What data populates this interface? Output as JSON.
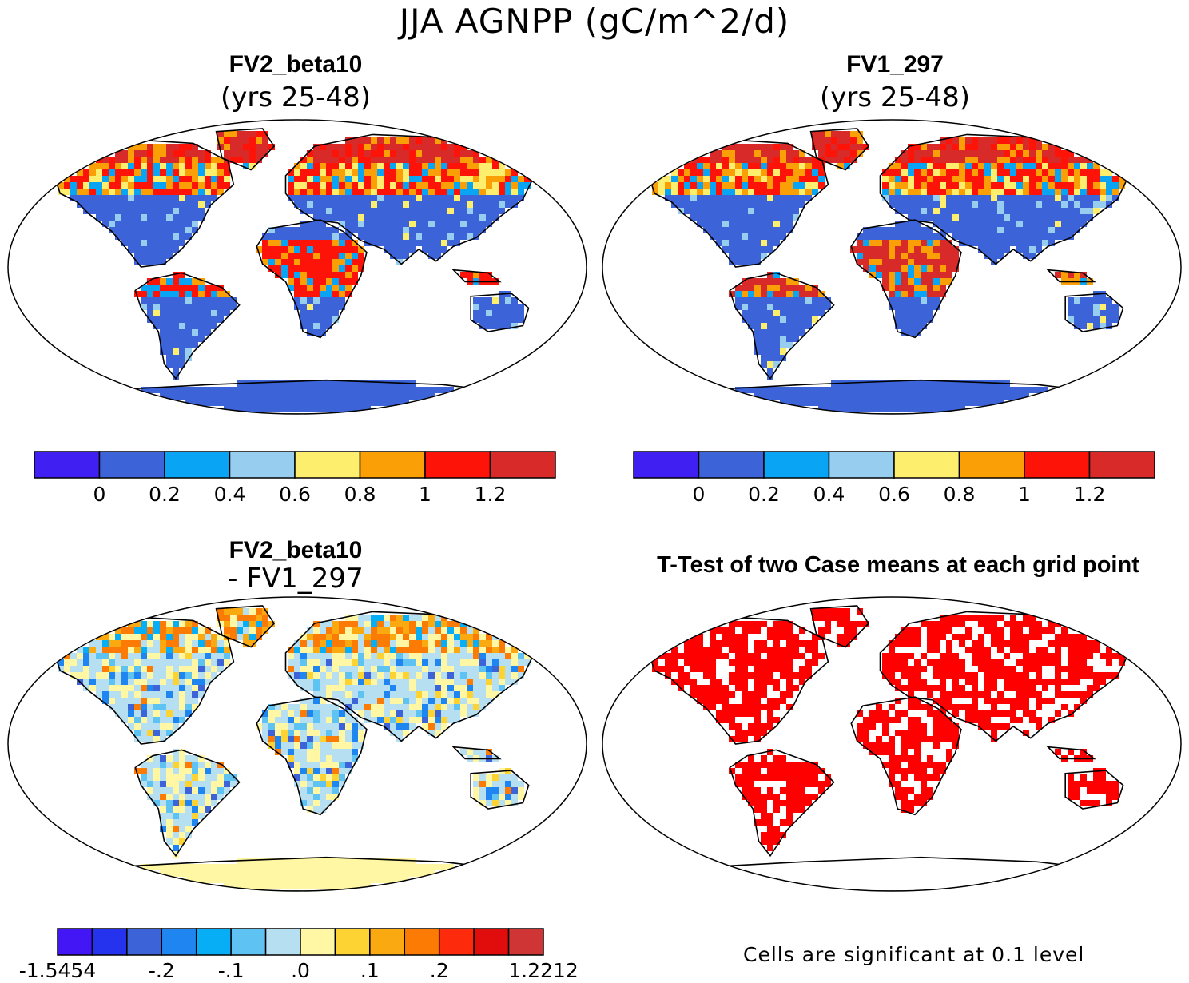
{
  "title": "JJA AGNPP (gC/m^2/d)",
  "panels": [
    {
      "title": "FV2_beta10",
      "subtitle": "(yrs 25-48)",
      "color_scheme": "mean"
    },
    {
      "title": "FV1_297",
      "subtitle": "(yrs 25-48)",
      "color_scheme": "mean"
    },
    {
      "title": "FV2_beta10",
      "subtitle": "- FV1_297",
      "color_scheme": "difference"
    },
    {
      "title": "T-Test of two Case means at each grid point",
      "subtitle": "",
      "color_scheme": "significance"
    }
  ],
  "colorbar_mean": {
    "colors": [
      "#3f1ff2",
      "#3c64d8",
      "#0aa4f5",
      "#97cdef",
      "#fdee6e",
      "#fb9f06",
      "#fe1308",
      "#d92a2a"
    ],
    "tick_labels": [
      "0",
      "0.2",
      "0.4",
      "0.6",
      "0.8",
      "1",
      "1.2"
    ]
  },
  "colorbar_diff": {
    "colors": [
      "#4316f6",
      "#2533ef",
      "#3c64d8",
      "#1f86f1",
      "#07aef6",
      "#5ec2f3",
      "#b6dff2",
      "#fff7a3",
      "#fcd332",
      "#faaa10",
      "#fb7b05",
      "#fe2a0c",
      "#e10d0d",
      "#d03535"
    ],
    "tick_labels": [
      "-1.5454",
      "-.2",
      "-.1",
      ".0",
      ".1",
      ".2",
      "1.2212"
    ]
  },
  "significance": {
    "color": "#ff0000",
    "note": "Cells are significant at 0.1 level"
  },
  "map_colors": {
    "ocean": "#ffffff",
    "coastline": "#000000",
    "antarctica_mean": "#3c64d8",
    "antarctica_diff": "#fff7a3"
  }
}
